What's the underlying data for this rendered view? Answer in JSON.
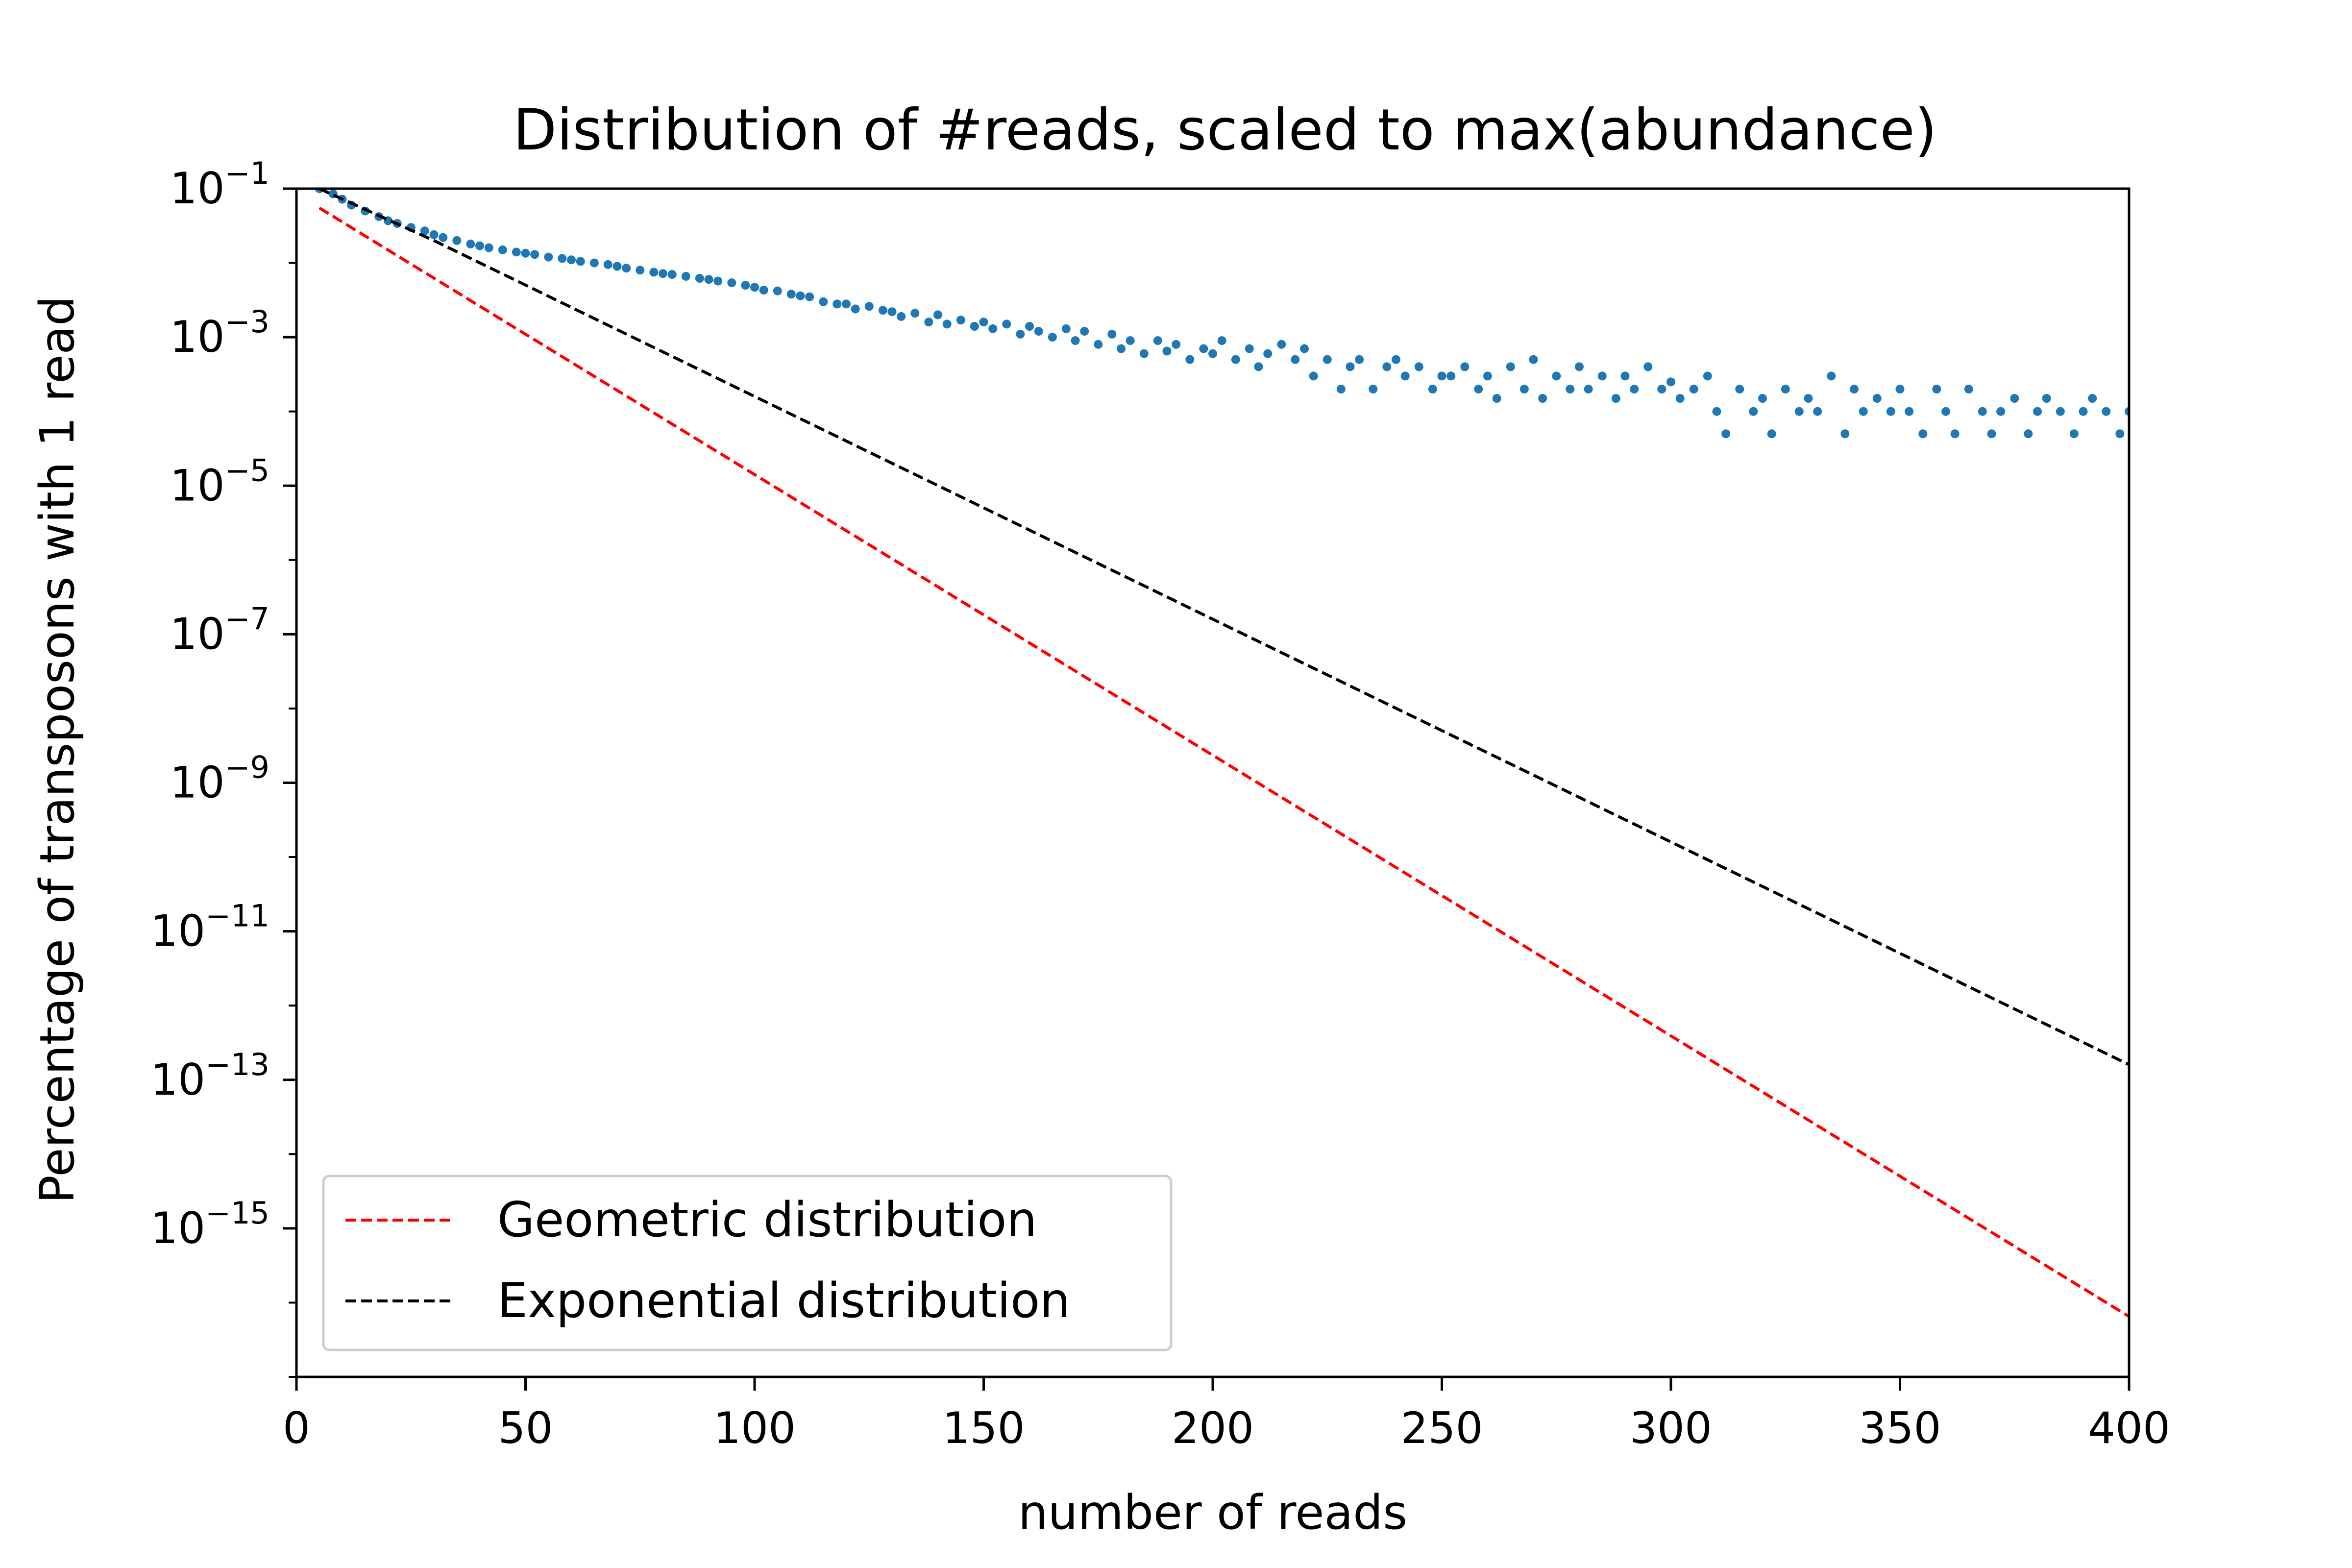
{
  "chart_data": {
    "type": "scatter",
    "title": "Distribution of #reads, scaled to max(abundance)",
    "xlabel": "number of reads",
    "ylabel": "Percentage of transposons with 1 read",
    "xlim": [
      0,
      400
    ],
    "ylim": [
      1e-17,
      0.1
    ],
    "yscale": "log",
    "grid": false,
    "legend_position": "lower-left",
    "x_ticks": [
      {
        "value": 0,
        "label": "0"
      },
      {
        "value": 50,
        "label": "50"
      },
      {
        "value": 100,
        "label": "100"
      },
      {
        "value": 150,
        "label": "150"
      },
      {
        "value": 200,
        "label": "200"
      },
      {
        "value": 250,
        "label": "250"
      },
      {
        "value": 300,
        "label": "300"
      },
      {
        "value": 350,
        "label": "350"
      },
      {
        "value": 400,
        "label": "400"
      }
    ],
    "y_ticks": [
      {
        "exp": -1,
        "label_base": "10",
        "label_exp": "−1"
      },
      {
        "exp": -3,
        "label_base": "10",
        "label_exp": "−3"
      },
      {
        "exp": -5,
        "label_base": "10",
        "label_exp": "−5"
      },
      {
        "exp": -7,
        "label_base": "10",
        "label_exp": "−7"
      },
      {
        "exp": -9,
        "label_base": "10",
        "label_exp": "−9"
      },
      {
        "exp": -11,
        "label_base": "10",
        "label_exp": "−11"
      },
      {
        "exp": -13,
        "label_base": "10",
        "label_exp": "−13"
      },
      {
        "exp": -15,
        "label_base": "10",
        "label_exp": "−15"
      }
    ],
    "series": [
      {
        "name": "",
        "kind": "scatter",
        "color": "#1f77b4",
        "points": [
          [
            5,
            0.1
          ],
          [
            8,
            0.085
          ],
          [
            10,
            0.072
          ],
          [
            12,
            0.06
          ],
          [
            15,
            0.05
          ],
          [
            18,
            0.042
          ],
          [
            20,
            0.037
          ],
          [
            22,
            0.034
          ],
          [
            25,
            0.03
          ],
          [
            28,
            0.027
          ],
          [
            30,
            0.024
          ],
          [
            32,
            0.022
          ],
          [
            35,
            0.02
          ],
          [
            38,
            0.018
          ],
          [
            40,
            0.017
          ],
          [
            42,
            0.016
          ],
          [
            45,
            0.015
          ],
          [
            48,
            0.014
          ],
          [
            50,
            0.0135
          ],
          [
            52,
            0.013
          ],
          [
            55,
            0.012
          ],
          [
            58,
            0.0115
          ],
          [
            60,
            0.011
          ],
          [
            62,
            0.0105
          ],
          [
            65,
            0.01
          ],
          [
            68,
            0.0095
          ],
          [
            70,
            0.009
          ],
          [
            72,
            0.0085
          ],
          [
            75,
            0.008
          ],
          [
            78,
            0.0075
          ],
          [
            80,
            0.0072
          ],
          [
            82,
            0.007
          ],
          [
            85,
            0.0066
          ],
          [
            88,
            0.0062
          ],
          [
            90,
            0.006
          ],
          [
            92,
            0.0057
          ],
          [
            95,
            0.0054
          ],
          [
            98,
            0.005
          ],
          [
            100,
            0.0047
          ],
          [
            102,
            0.0043
          ],
          [
            105,
            0.0042
          ],
          [
            108,
            0.0038
          ],
          [
            110,
            0.0036
          ],
          [
            112,
            0.0035
          ],
          [
            115,
            0.003
          ],
          [
            118,
            0.0028
          ],
          [
            120,
            0.0028
          ],
          [
            122,
            0.0024
          ],
          [
            125,
            0.0026
          ],
          [
            128,
            0.0023
          ],
          [
            130,
            0.0022
          ],
          [
            132,
            0.0019
          ],
          [
            135,
            0.0021
          ],
          [
            138,
            0.0016
          ],
          [
            140,
            0.002
          ],
          [
            142,
            0.0015
          ],
          [
            145,
            0.0017
          ],
          [
            148,
            0.0014
          ],
          [
            150,
            0.0016
          ],
          [
            152,
            0.0013
          ],
          [
            155,
            0.0015
          ],
          [
            158,
            0.0011
          ],
          [
            160,
            0.0014
          ],
          [
            162,
            0.0012
          ],
          [
            165,
            0.001
          ],
          [
            168,
            0.0013
          ],
          [
            170,
            0.0009
          ],
          [
            172,
            0.0012
          ],
          [
            175,
            0.0008
          ],
          [
            178,
            0.0011
          ],
          [
            180,
            0.0007
          ],
          [
            182,
            0.0009
          ],
          [
            185,
            0.0006
          ],
          [
            188,
            0.0009
          ],
          [
            190,
            0.00065
          ],
          [
            192,
            0.0008
          ],
          [
            195,
            0.0005
          ],
          [
            198,
            0.0007
          ],
          [
            200,
            0.0006
          ],
          [
            202,
            0.0009
          ],
          [
            205,
            0.0005
          ],
          [
            208,
            0.0007
          ],
          [
            210,
            0.0004
          ],
          [
            212,
            0.0006
          ],
          [
            215,
            0.0008
          ],
          [
            218,
            0.0005
          ],
          [
            220,
            0.0007
          ],
          [
            222,
            0.0003
          ],
          [
            225,
            0.0005
          ],
          [
            228,
            0.0002
          ],
          [
            230,
            0.0004
          ],
          [
            232,
            0.0005
          ],
          [
            235,
            0.0002
          ],
          [
            238,
            0.0004
          ],
          [
            240,
            0.0005
          ],
          [
            242,
            0.0003
          ],
          [
            245,
            0.0004
          ],
          [
            248,
            0.0002
          ],
          [
            250,
            0.0003
          ],
          [
            252,
            0.0003
          ],
          [
            255,
            0.0004
          ],
          [
            258,
            0.0002
          ],
          [
            260,
            0.0003
          ],
          [
            262,
            0.00015
          ],
          [
            265,
            0.0004
          ],
          [
            268,
            0.0002
          ],
          [
            270,
            0.0005
          ],
          [
            272,
            0.00015
          ],
          [
            275,
            0.0003
          ],
          [
            278,
            0.0002
          ],
          [
            280,
            0.0004
          ],
          [
            282,
            0.0002
          ],
          [
            285,
            0.0003
          ],
          [
            288,
            0.00015
          ],
          [
            290,
            0.0003
          ],
          [
            292,
            0.0002
          ],
          [
            295,
            0.0004
          ],
          [
            298,
            0.0002
          ],
          [
            300,
            0.00025
          ],
          [
            302,
            0.00015
          ],
          [
            305,
            0.0002
          ],
          [
            308,
            0.0003
          ],
          [
            310,
            0.0001
          ],
          [
            312,
            5e-05
          ],
          [
            315,
            0.0002
          ],
          [
            318,
            0.0001
          ],
          [
            320,
            0.00015
          ],
          [
            322,
            5e-05
          ],
          [
            325,
            0.0002
          ],
          [
            328,
            0.0001
          ],
          [
            330,
            0.00015
          ],
          [
            332,
            0.0001
          ],
          [
            335,
            0.0003
          ],
          [
            338,
            5e-05
          ],
          [
            340,
            0.0002
          ],
          [
            342,
            0.0001
          ],
          [
            345,
            0.00015
          ],
          [
            348,
            0.0001
          ],
          [
            350,
            0.0002
          ],
          [
            352,
            0.0001
          ],
          [
            355,
            5e-05
          ],
          [
            358,
            0.0002
          ],
          [
            360,
            0.0001
          ],
          [
            362,
            5e-05
          ],
          [
            365,
            0.0002
          ],
          [
            368,
            0.0001
          ],
          [
            370,
            5e-05
          ],
          [
            372,
            0.0001
          ],
          [
            375,
            0.00015
          ],
          [
            378,
            5e-05
          ],
          [
            380,
            0.0001
          ],
          [
            382,
            0.00015
          ],
          [
            385,
            0.0001
          ],
          [
            388,
            5e-05
          ],
          [
            390,
            0.0001
          ],
          [
            392,
            0.00015
          ],
          [
            395,
            0.0001
          ],
          [
            398,
            5e-05
          ],
          [
            400,
            0.0001
          ]
        ]
      },
      {
        "name": "Geometric distribution",
        "kind": "line",
        "style": "dashed",
        "color": "#ff0000",
        "points": [
          [
            5,
            0.055
          ],
          [
            400,
            6.5e-17
          ]
        ]
      },
      {
        "name": "Exponential distribution",
        "kind": "line",
        "style": "dashed",
        "color": "#000000",
        "points": [
          [
            5,
            0.1
          ],
          [
            30,
            0.02
          ],
          [
            400,
            1.6e-13
          ]
        ]
      }
    ]
  }
}
